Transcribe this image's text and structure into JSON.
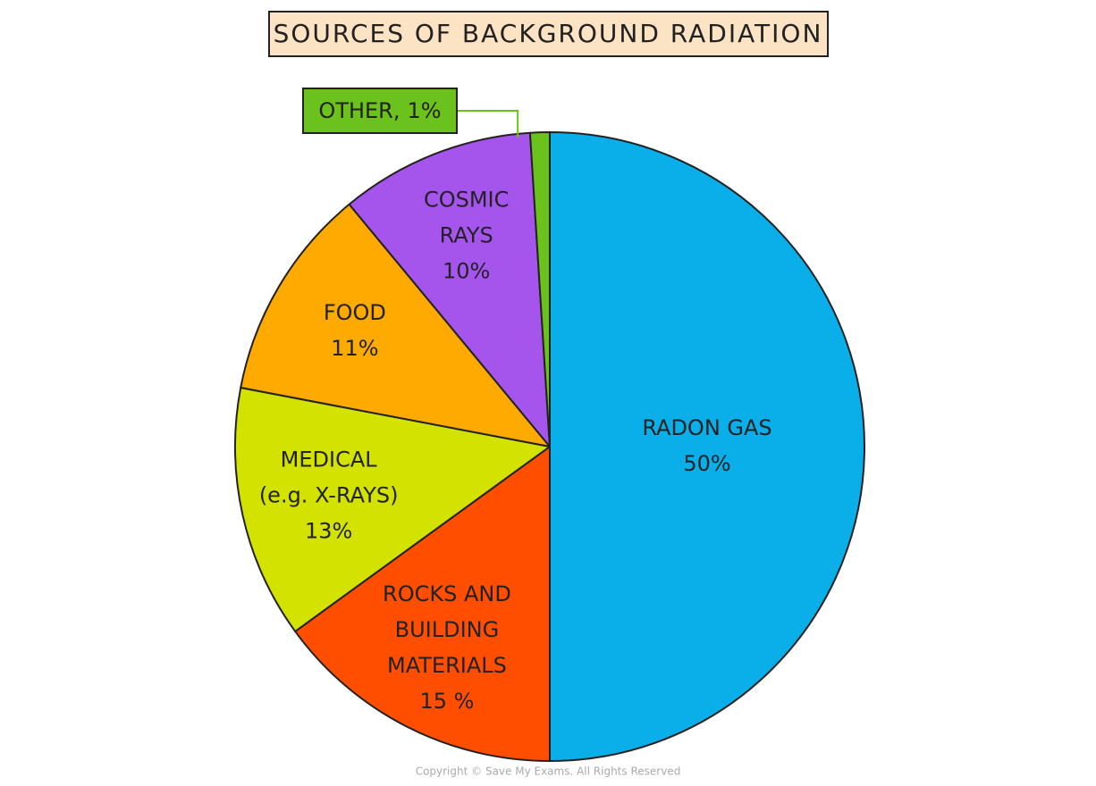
{
  "chart_data": {
    "type": "pie",
    "title": "SOURCES OF BACKGROUND RADIATION",
    "categories": [
      [
        "RADON GAS"
      ],
      [
        "ROCKS AND",
        "BUILDING",
        "MATERIALS"
      ],
      [
        "MEDICAL",
        "(e.g. X-RAYS)"
      ],
      [
        "FOOD"
      ],
      [
        "COSMIC",
        "RAYS"
      ],
      [
        "OTHER,"
      ]
    ],
    "values": [
      50,
      15,
      13,
      11,
      10,
      1
    ],
    "value_labels": [
      "50%",
      "15 %",
      "13%",
      "11%",
      "10%",
      "1%"
    ],
    "colors": [
      "#0aaee8",
      "#ff4e00",
      "#d4e200",
      "#ffaa00",
      "#a555ec",
      "#6cc21c"
    ]
  },
  "footer": "Copyright © Save My Exams. All Rights Reserved"
}
